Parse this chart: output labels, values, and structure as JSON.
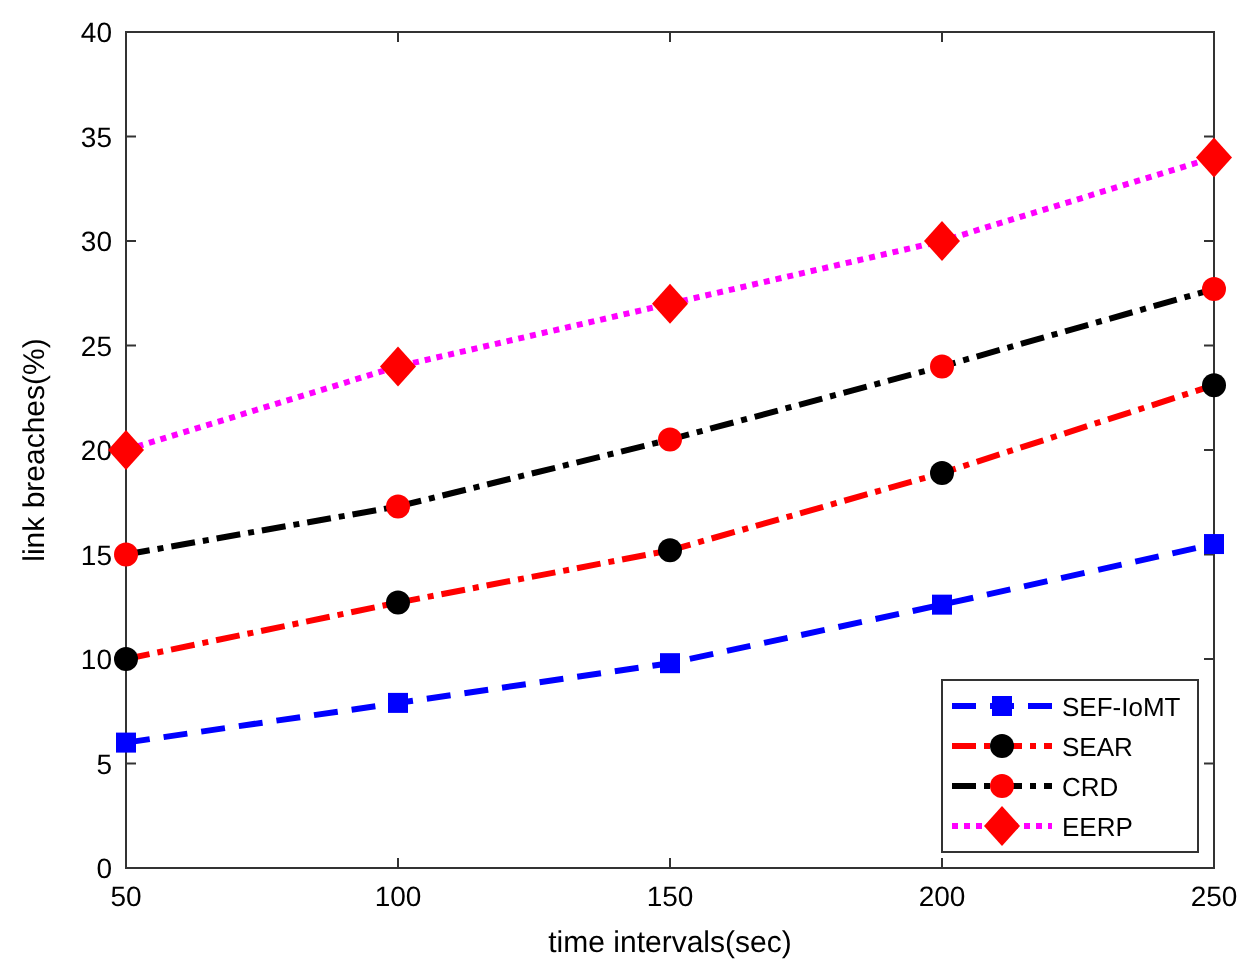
{
  "chart_data": {
    "type": "line",
    "xlabel": "time intervals(sec)",
    "ylabel": "link breaches(%)",
    "x": [
      50,
      100,
      150,
      200,
      250
    ],
    "xlim": [
      50,
      250
    ],
    "xticks": [
      50,
      100,
      150,
      200,
      250
    ],
    "ylim": [
      0,
      40
    ],
    "yticks": [
      0,
      5,
      10,
      15,
      20,
      25,
      30,
      35,
      40
    ],
    "grid": false,
    "legend": "bottom right",
    "series": [
      {
        "name": "SEF-IoMT",
        "color": "#0000ff",
        "colors": [
          "#0000ff",
          "#0000ff",
          "#0000ff",
          "#0000ff",
          "#0000ff"
        ],
        "marker": "square",
        "line_style": "dashed",
        "values": [
          6,
          7.9,
          9.8,
          12.6,
          15.5
        ]
      },
      {
        "name": "SEAR",
        "color": "#ff0000",
        "colors": [
          "#000000",
          "#000000",
          "#000000",
          "#000000",
          "#000000"
        ],
        "marker": "circle",
        "line_style": "dashdot",
        "values": [
          10,
          12.7,
          15.2,
          18.9,
          23.1
        ]
      },
      {
        "name": "CRD",
        "color": "#000000",
        "colors": [
          "#ff0000",
          "#ff0000",
          "#ff0000",
          "#ff0000",
          "#ff0000"
        ],
        "marker": "circle",
        "line_style": "dashdot",
        "values": [
          15,
          17.3,
          20.5,
          24,
          27.7
        ]
      },
      {
        "name": "EERP",
        "color": "#ff00ff",
        "colors": [
          "#ff0000",
          "#ff0000",
          "#ff0000",
          "#ff0000",
          "#ff0000"
        ],
        "marker": "diamond",
        "line_style": "dotted",
        "values": [
          20,
          24,
          27,
          30,
          34
        ]
      }
    ]
  }
}
